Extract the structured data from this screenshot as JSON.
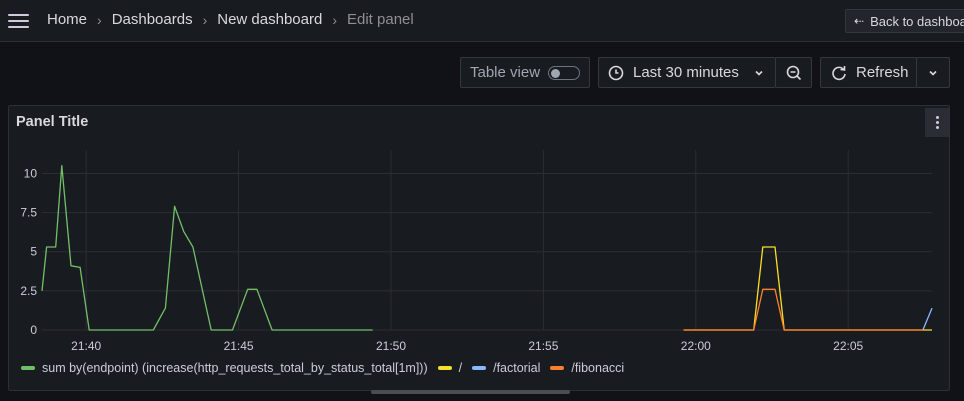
{
  "nav": {
    "breadcrumbs": [
      {
        "label": "Home"
      },
      {
        "label": "Dashboards"
      },
      {
        "label": "New dashboard"
      },
      {
        "label": "Edit panel"
      }
    ],
    "back_label": "Back to dashboard"
  },
  "toolbar": {
    "table_view_label": "Table view",
    "table_view_on": false,
    "time_range_label": "Last 30 minutes",
    "refresh_label": "Refresh"
  },
  "panel": {
    "title": "Panel Title"
  },
  "chart_data": {
    "type": "line",
    "y_ticks": [
      "0",
      "2.5",
      "5",
      "7.5",
      "10"
    ],
    "ylim": [
      0,
      11.5
    ],
    "x_ticks": [
      "21:40",
      "21:45",
      "21:50",
      "21:55",
      "22:00",
      "22:05"
    ],
    "x_tick_minutes": [
      0,
      5,
      10,
      15,
      20,
      25
    ],
    "xlim_minutes": [
      -1.45,
      27.75
    ],
    "grid": true,
    "legend_position": "bottom-left",
    "series": [
      {
        "name": "sum by(endpoint) (increase(http_requests_total_by_status_total[1m]))",
        "color": "#73bf69",
        "points": [
          [
            -1.45,
            2.5
          ],
          [
            -1.3,
            5.3
          ],
          [
            -1.0,
            5.3
          ],
          [
            -0.8,
            10.5
          ],
          [
            -0.5,
            4.1
          ],
          [
            -0.2,
            4.0
          ],
          [
            0.1,
            0
          ],
          [
            1.3,
            0
          ],
          [
            1.5,
            0
          ],
          [
            1.8,
            0
          ],
          [
            2.2,
            0
          ],
          [
            2.6,
            1.4
          ],
          [
            2.9,
            7.9
          ],
          [
            3.2,
            6.3
          ],
          [
            3.5,
            5.3
          ],
          [
            4.1,
            0
          ],
          [
            4.8,
            0
          ],
          [
            5.3,
            2.6
          ],
          [
            5.6,
            2.6
          ],
          [
            6.1,
            0
          ],
          [
            9.4,
            0
          ]
        ]
      },
      {
        "name": "/",
        "color": "#fade2a",
        "points": [
          [
            19.6,
            0
          ],
          [
            21.9,
            0
          ],
          [
            22.2,
            5.3
          ],
          [
            22.6,
            5.3
          ],
          [
            22.9,
            0
          ],
          [
            27.75,
            0
          ]
        ]
      },
      {
        "name": "/factorial",
        "color": "#8ab8ff",
        "points": [
          [
            27.45,
            0
          ],
          [
            27.75,
            1.4
          ]
        ]
      },
      {
        "name": "/fibonacci",
        "color": "#ff7f2a",
        "points": [
          [
            19.6,
            0
          ],
          [
            21.9,
            0
          ],
          [
            22.2,
            2.6
          ],
          [
            22.6,
            2.6
          ],
          [
            22.9,
            0
          ],
          [
            27.45,
            0
          ]
        ]
      }
    ]
  }
}
